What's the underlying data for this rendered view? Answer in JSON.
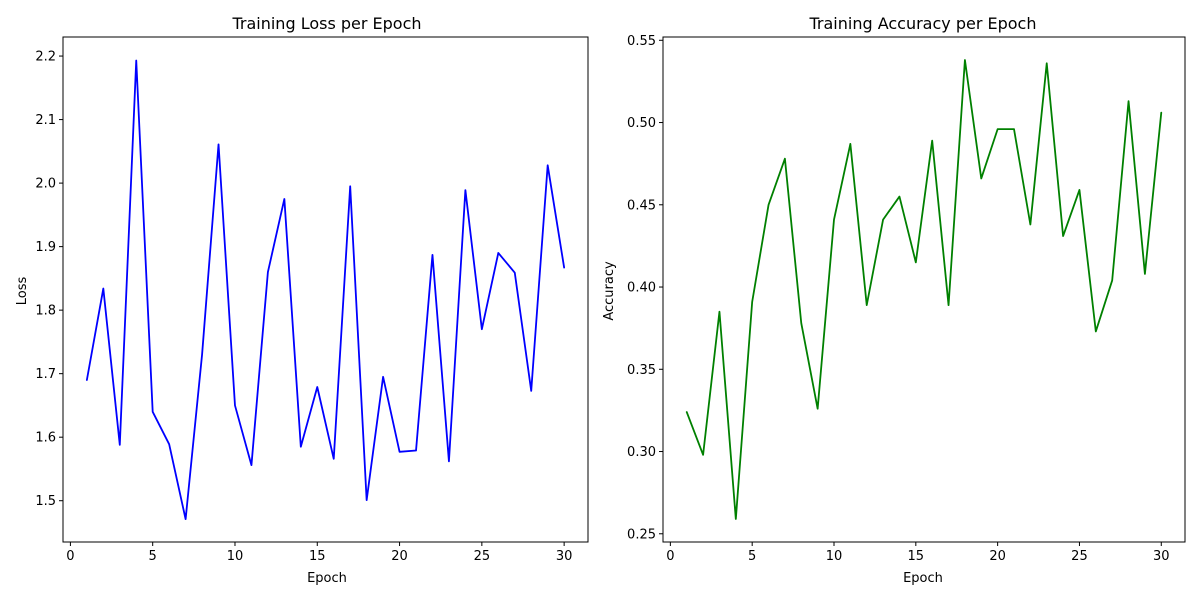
{
  "chart_data": [
    {
      "type": "line",
      "title": "Training Loss per Epoch",
      "xlabel": "Epoch",
      "ylabel": "Loss",
      "xlim": [
        -0.45,
        31.45
      ],
      "ylim": [
        1.435,
        2.23
      ],
      "xticks": [
        0,
        5,
        10,
        15,
        20,
        25,
        30
      ],
      "yticks": [
        1.5,
        1.6,
        1.7,
        1.8,
        1.9,
        2.0,
        2.1,
        2.2
      ],
      "ytick_decimals": 1,
      "grid": false,
      "series": [
        {
          "color": "#0000ff",
          "x": [
            1,
            2,
            3,
            4,
            5,
            6,
            7,
            8,
            9,
            10,
            11,
            12,
            13,
            14,
            15,
            16,
            17,
            18,
            19,
            20,
            21,
            22,
            23,
            24,
            25,
            26,
            27,
            28,
            29,
            30
          ],
          "y": [
            1.69,
            1.834,
            1.588,
            2.193,
            1.64,
            1.589,
            1.471,
            1.73,
            2.061,
            1.65,
            1.556,
            1.86,
            1.975,
            1.585,
            1.679,
            1.566,
            1.995,
            1.501,
            1.695,
            1.577,
            1.579,
            1.887,
            1.562,
            1.989,
            1.77,
            1.89,
            1.859,
            1.673,
            2.028,
            1.867
          ]
        }
      ]
    },
    {
      "type": "line",
      "title": "Training Accuracy per Epoch",
      "xlabel": "Epoch",
      "ylabel": "Accuracy",
      "xlim": [
        -0.45,
        31.45
      ],
      "ylim": [
        0.245,
        0.552
      ],
      "xticks": [
        0,
        5,
        10,
        15,
        20,
        25,
        30
      ],
      "yticks": [
        0.25,
        0.3,
        0.35,
        0.4,
        0.45,
        0.5,
        0.55
      ],
      "ytick_decimals": 2,
      "grid": false,
      "series": [
        {
          "color": "#008000",
          "x": [
            1,
            2,
            3,
            4,
            5,
            6,
            7,
            8,
            9,
            10,
            11,
            12,
            13,
            14,
            15,
            16,
            17,
            18,
            19,
            20,
            21,
            22,
            23,
            24,
            25,
            26,
            27,
            28,
            29,
            30
          ],
          "y": [
            0.324,
            0.298,
            0.385,
            0.259,
            0.391,
            0.45,
            0.478,
            0.378,
            0.326,
            0.441,
            0.487,
            0.389,
            0.441,
            0.455,
            0.415,
            0.489,
            0.389,
            0.538,
            0.466,
            0.496,
            0.496,
            0.438,
            0.536,
            0.431,
            0.459,
            0.373,
            0.404,
            0.513,
            0.408,
            0.506
          ]
        }
      ]
    }
  ]
}
